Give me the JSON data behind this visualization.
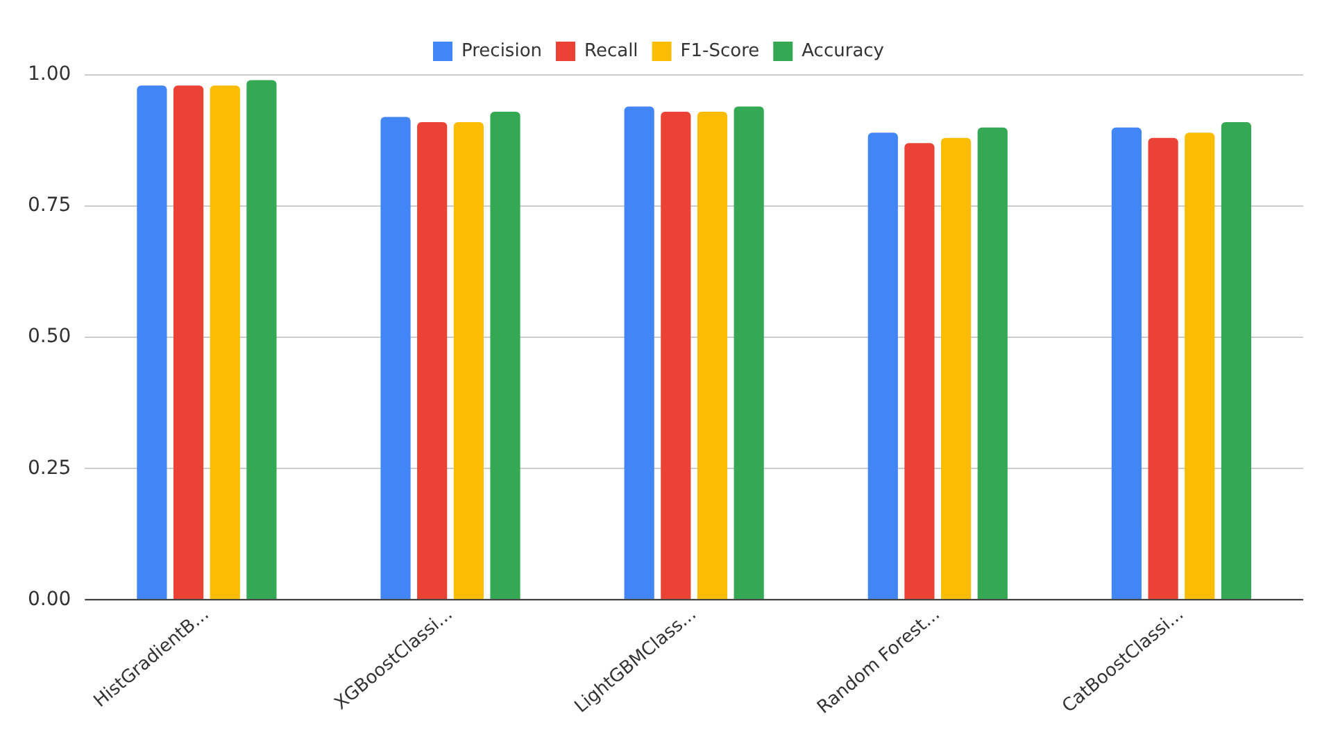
{
  "chart_data": {
    "type": "bar",
    "categories": [
      "HistGradientB...",
      "XGBoostClassi...",
      "LightGBMClass...",
      "Random Forest...",
      "CatBoostClassi..."
    ],
    "series": [
      {
        "name": "Precision",
        "color": "#4285f4",
        "values": [
          0.98,
          0.92,
          0.94,
          0.89,
          0.9
        ]
      },
      {
        "name": "Recall",
        "color": "#ea4335",
        "values": [
          0.98,
          0.91,
          0.93,
          0.87,
          0.88
        ]
      },
      {
        "name": "F1-Score",
        "color": "#fbbc04",
        "values": [
          0.98,
          0.91,
          0.93,
          0.88,
          0.89
        ]
      },
      {
        "name": "Accuracy",
        "color": "#34a853",
        "values": [
          0.99,
          0.93,
          0.94,
          0.9,
          0.91
        ]
      }
    ],
    "ylim": [
      0,
      1
    ],
    "yticks": [
      {
        "value": 0,
        "label": "0.00"
      },
      {
        "value": 0.25,
        "label": "0.25"
      },
      {
        "value": 0.5,
        "label": "0.50"
      },
      {
        "value": 0.75,
        "label": "0.75"
      },
      {
        "value": 1,
        "label": "1.00"
      }
    ],
    "grid": "y",
    "legend": "top"
  }
}
